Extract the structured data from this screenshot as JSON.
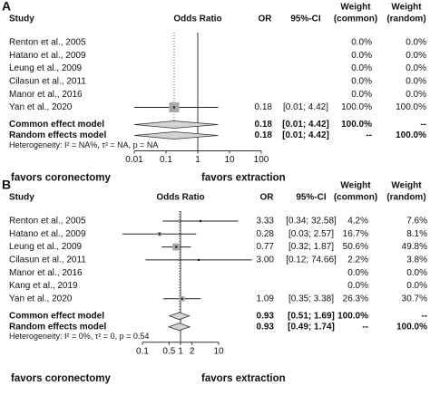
{
  "chart_data": [
    {
      "type": "forest",
      "panel": "A",
      "headers": {
        "study": "Study",
        "effect": "Odds Ratio",
        "or": "OR",
        "ci": "95%-CI",
        "weight_common": [
          "Weight",
          "(common)"
        ],
        "weight_random": [
          "Weight",
          "(random)"
        ]
      },
      "studies": [
        {
          "name": "Renton et al., 2005",
          "weight_common": 0,
          "weight_common_label": "0.0%",
          "weight_random": 0,
          "weight_random_label": "0.0%"
        },
        {
          "name": "Hatano et al., 2009",
          "weight_common": 0,
          "weight_common_label": "0.0%",
          "weight_random": 0,
          "weight_random_label": "0.0%"
        },
        {
          "name": "Leung et al., 2009",
          "weight_common": 0,
          "weight_common_label": "0.0%",
          "weight_random": 0,
          "weight_random_label": "0.0%"
        },
        {
          "name": "Cilasun et al., 2011",
          "weight_common": 0,
          "weight_common_label": "0.0%",
          "weight_random": 0,
          "weight_random_label": "0.0%"
        },
        {
          "name": "Manor et al., 2016",
          "weight_common": 0,
          "weight_common_label": "0.0%",
          "weight_random": 0,
          "weight_random_label": "0.0%"
        },
        {
          "name": "Yan et al., 2020",
          "value": 0.18,
          "value_label": "0.18",
          "ci": [
            0.01,
            4.42
          ],
          "ci_label": "[0.01; 4.42]",
          "weight_common": 100,
          "weight_common_label": "100.0%",
          "weight_random": 100,
          "weight_random_label": "100.0%"
        }
      ],
      "pooled": [
        {
          "name": "Common effect model",
          "value": 0.18,
          "value_label": "0.18",
          "ci": [
            0.01,
            4.42
          ],
          "ci_label": "[0.01; 4.42]",
          "weight_common_label": "100.0%",
          "weight_random_label": "--"
        },
        {
          "name": "Random effects model",
          "value": 0.18,
          "value_label": "0.18",
          "ci": [
            0.01,
            4.42
          ],
          "ci_label": "[0.01; 4.42]",
          "weight_common_label": "--",
          "weight_random_label": "100.0%"
        }
      ],
      "heterogeneity": "Heterogeneity: I² = NA%, τ² = NA, p = NA",
      "xlim": [
        0.01,
        100
      ],
      "xticks": [
        0.01,
        0.1,
        1,
        10,
        100
      ],
      "log_x": true,
      "reference_line": 1,
      "favors_left": "favors coronectomy",
      "favors_right": "favors extraction",
      "square_color": "#a8a8a8",
      "diamond_color": "#d4d4d4"
    },
    {
      "type": "forest",
      "panel": "B",
      "headers": {
        "study": "Study",
        "effect": "Odds Ratio",
        "or": "OR",
        "ci": "95%-CI",
        "weight_common": [
          "Weight",
          "(common)"
        ],
        "weight_random": [
          "Weight",
          "(random)"
        ]
      },
      "studies": [
        {
          "name": "Renton et al., 2005",
          "value": 3.33,
          "value_label": "3.33",
          "ci": [
            0.34,
            32.58
          ],
          "ci_label": "[0.34; 32.58]",
          "weight_common": 4.2,
          "weight_common_label": "4.2%",
          "weight_random": 7.6,
          "weight_random_label": "7.6%"
        },
        {
          "name": "Hatano et al., 2009",
          "value": 0.28,
          "value_label": "0.28",
          "ci": [
            0.03,
            2.57
          ],
          "ci_label": "[0.03; 2.57]",
          "weight_common": 16.7,
          "weight_common_label": "16.7%",
          "weight_random": 8.1,
          "weight_random_label": "8.1%"
        },
        {
          "name": "Leung et al., 2009",
          "value": 0.77,
          "value_label": "0.77",
          "ci": [
            0.32,
            1.87
          ],
          "ci_label": "[0.32; 1.87]",
          "weight_common": 50.6,
          "weight_common_label": "50.6%",
          "weight_random": 49.8,
          "weight_random_label": "49.8%"
        },
        {
          "name": "Cilasun et al., 2011",
          "value": 3,
          "value_label": "3.00",
          "ci": [
            0.12,
            74.66
          ],
          "ci_label": "[0.12; 74.66]",
          "weight_common": 2.2,
          "weight_common_label": "2.2%",
          "weight_random": 3.8,
          "weight_random_label": "3.8%"
        },
        {
          "name": "Manor et al., 2016",
          "weight_common": 0,
          "weight_common_label": "0.0%",
          "weight_random": 0,
          "weight_random_label": "0.0%"
        },
        {
          "name": "Kang et al., 2019",
          "weight_common": 0,
          "weight_common_label": "0.0%",
          "weight_random": 0,
          "weight_random_label": "0.0%"
        },
        {
          "name": "Yan et al., 2020",
          "value": 1.09,
          "value_label": "1.09",
          "ci": [
            0.35,
            3.38
          ],
          "ci_label": "[0.35; 3.38]",
          "weight_common": 26.3,
          "weight_common_label": "26.3%",
          "weight_random": 30.7,
          "weight_random_label": "30.7%"
        }
      ],
      "pooled": [
        {
          "name": "Common effect model",
          "value": 0.93,
          "value_label": "0.93",
          "ci": [
            0.51,
            1.69
          ],
          "ci_label": "[0.51; 1.69]",
          "weight_common_label": "100.0%",
          "weight_random_label": "--"
        },
        {
          "name": "Random effects model",
          "value": 0.93,
          "value_label": "0.93",
          "ci": [
            0.49,
            1.74
          ],
          "ci_label": "[0.49; 1.74]",
          "weight_common_label": "--",
          "weight_random_label": "100.0%"
        }
      ],
      "heterogeneity": "Heterogeneity: I² = 0%, τ² = 0, p = 0.54",
      "xlim": [
        0.1,
        10
      ],
      "xticks": [
        0.1,
        0.5,
        1,
        2,
        10
      ],
      "log_x": true,
      "reference_line": 1,
      "favors_left": "favors coronectomy",
      "favors_right": "favors extraction",
      "square_color": "#a8a8a8",
      "diamond_color": "#d4d4d4"
    }
  ]
}
